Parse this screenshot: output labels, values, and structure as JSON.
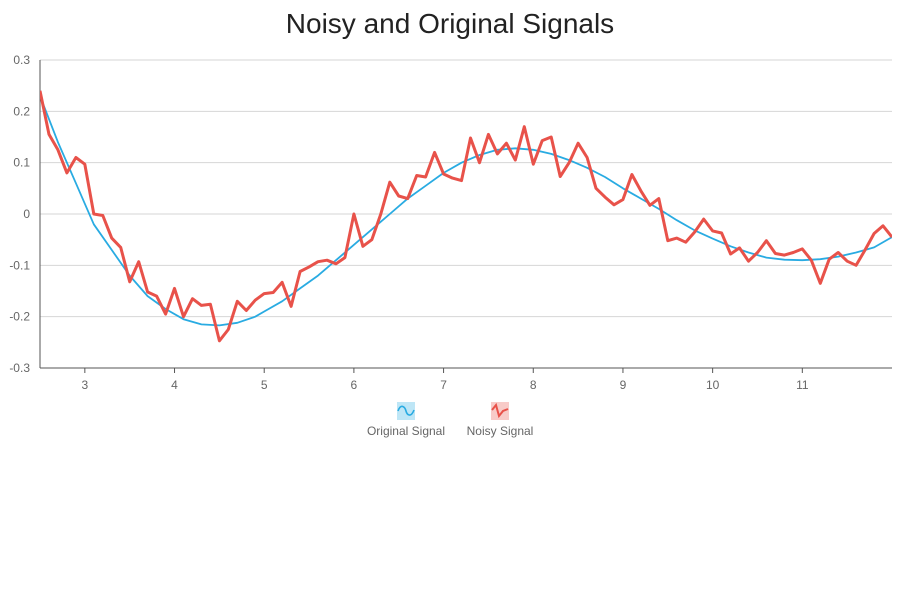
{
  "chart_data": {
    "type": "line",
    "title": "Noisy and Original Signals",
    "xlabel": "",
    "ylabel": "",
    "xlim": [
      2.5,
      12.0
    ],
    "ylim": [
      -0.3,
      0.3
    ],
    "x_ticks": [
      3,
      4,
      5,
      6,
      7,
      8,
      9,
      10,
      11
    ],
    "y_ticks": [
      -0.3,
      -0.2,
      -0.1,
      0,
      0.1,
      0.2,
      0.3
    ],
    "y_tick_labels": [
      "-0.3",
      "-0.2",
      "-0.1",
      "0",
      "0.1",
      "0.2",
      "0.3"
    ],
    "grid": {
      "horizontal": true,
      "vertical": false
    },
    "legend_position": "bottom-center",
    "series": [
      {
        "name": "Original Signal",
        "color": "#29abe2",
        "points": [
          [
            2.5,
            0.23
          ],
          [
            2.7,
            0.14
          ],
          [
            2.9,
            0.06
          ],
          [
            3.0,
            0.02
          ],
          [
            3.1,
            -0.02
          ],
          [
            3.3,
            -0.07
          ],
          [
            3.5,
            -0.12
          ],
          [
            3.7,
            -0.16
          ],
          [
            3.9,
            -0.185
          ],
          [
            4.1,
            -0.205
          ],
          [
            4.3,
            -0.215
          ],
          [
            4.5,
            -0.217
          ],
          [
            4.7,
            -0.212
          ],
          [
            4.9,
            -0.2
          ],
          [
            5.0,
            -0.19
          ],
          [
            5.2,
            -0.17
          ],
          [
            5.4,
            -0.145
          ],
          [
            5.6,
            -0.12
          ],
          [
            5.8,
            -0.09
          ],
          [
            6.0,
            -0.06
          ],
          [
            6.2,
            -0.03
          ],
          [
            6.4,
            0.0
          ],
          [
            6.6,
            0.03
          ],
          [
            6.8,
            0.055
          ],
          [
            7.0,
            0.08
          ],
          [
            7.2,
            0.1
          ],
          [
            7.4,
            0.115
          ],
          [
            7.6,
            0.125
          ],
          [
            7.8,
            0.128
          ],
          [
            8.0,
            0.125
          ],
          [
            8.2,
            0.117
          ],
          [
            8.4,
            0.105
          ],
          [
            8.6,
            0.09
          ],
          [
            8.8,
            0.072
          ],
          [
            9.0,
            0.05
          ],
          [
            9.2,
            0.03
          ],
          [
            9.4,
            0.01
          ],
          [
            9.6,
            -0.012
          ],
          [
            9.8,
            -0.032
          ],
          [
            10.0,
            -0.048
          ],
          [
            10.2,
            -0.063
          ],
          [
            10.4,
            -0.075
          ],
          [
            10.6,
            -0.085
          ],
          [
            10.8,
            -0.089
          ],
          [
            11.0,
            -0.09
          ],
          [
            11.2,
            -0.088
          ],
          [
            11.4,
            -0.083
          ],
          [
            11.6,
            -0.075
          ],
          [
            11.8,
            -0.065
          ],
          [
            12.0,
            -0.045
          ]
        ]
      },
      {
        "name": "Noisy Signal",
        "color": "#e8524a",
        "points": [
          [
            2.5,
            0.24
          ],
          [
            2.6,
            0.155
          ],
          [
            2.7,
            0.125
          ],
          [
            2.8,
            0.08
          ],
          [
            2.9,
            0.11
          ],
          [
            3.0,
            0.097
          ],
          [
            3.1,
            0.0
          ],
          [
            3.2,
            -0.003
          ],
          [
            3.3,
            -0.047
          ],
          [
            3.4,
            -0.065
          ],
          [
            3.5,
            -0.132
          ],
          [
            3.6,
            -0.093
          ],
          [
            3.7,
            -0.152
          ],
          [
            3.8,
            -0.16
          ],
          [
            3.9,
            -0.195
          ],
          [
            4.0,
            -0.145
          ],
          [
            4.1,
            -0.2
          ],
          [
            4.2,
            -0.165
          ],
          [
            4.3,
            -0.178
          ],
          [
            4.4,
            -0.176
          ],
          [
            4.5,
            -0.247
          ],
          [
            4.6,
            -0.225
          ],
          [
            4.7,
            -0.17
          ],
          [
            4.8,
            -0.188
          ],
          [
            4.9,
            -0.168
          ],
          [
            5.0,
            -0.155
          ],
          [
            5.1,
            -0.153
          ],
          [
            5.2,
            -0.133
          ],
          [
            5.3,
            -0.18
          ],
          [
            5.4,
            -0.112
          ],
          [
            5.5,
            -0.103
          ],
          [
            5.6,
            -0.093
          ],
          [
            5.7,
            -0.09
          ],
          [
            5.8,
            -0.097
          ],
          [
            5.9,
            -0.085
          ],
          [
            6.0,
            0.0
          ],
          [
            6.1,
            -0.063
          ],
          [
            6.2,
            -0.05
          ],
          [
            6.3,
            0.0
          ],
          [
            6.4,
            0.062
          ],
          [
            6.5,
            0.035
          ],
          [
            6.6,
            0.03
          ],
          [
            6.7,
            0.075
          ],
          [
            6.8,
            0.072
          ],
          [
            6.9,
            0.12
          ],
          [
            7.0,
            0.078
          ],
          [
            7.1,
            0.07
          ],
          [
            7.2,
            0.065
          ],
          [
            7.3,
            0.148
          ],
          [
            7.4,
            0.1
          ],
          [
            7.5,
            0.155
          ],
          [
            7.6,
            0.117
          ],
          [
            7.7,
            0.138
          ],
          [
            7.8,
            0.105
          ],
          [
            7.9,
            0.17
          ],
          [
            8.0,
            0.097
          ],
          [
            8.1,
            0.143
          ],
          [
            8.2,
            0.15
          ],
          [
            8.3,
            0.073
          ],
          [
            8.4,
            0.1
          ],
          [
            8.5,
            0.138
          ],
          [
            8.6,
            0.11
          ],
          [
            8.7,
            0.05
          ],
          [
            8.8,
            0.033
          ],
          [
            8.9,
            0.018
          ],
          [
            9.0,
            0.028
          ],
          [
            9.1,
            0.077
          ],
          [
            9.2,
            0.045
          ],
          [
            9.3,
            0.017
          ],
          [
            9.4,
            0.03
          ],
          [
            9.5,
            -0.052
          ],
          [
            9.6,
            -0.047
          ],
          [
            9.7,
            -0.055
          ],
          [
            9.8,
            -0.035
          ],
          [
            9.9,
            -0.01
          ],
          [
            10.0,
            -0.033
          ],
          [
            10.1,
            -0.037
          ],
          [
            10.2,
            -0.078
          ],
          [
            10.3,
            -0.066
          ],
          [
            10.4,
            -0.092
          ],
          [
            10.5,
            -0.075
          ],
          [
            10.6,
            -0.052
          ],
          [
            10.7,
            -0.077
          ],
          [
            10.8,
            -0.08
          ],
          [
            10.9,
            -0.075
          ],
          [
            11.0,
            -0.068
          ],
          [
            11.1,
            -0.09
          ],
          [
            11.2,
            -0.135
          ],
          [
            11.3,
            -0.088
          ],
          [
            11.4,
            -0.075
          ],
          [
            11.5,
            -0.092
          ],
          [
            11.6,
            -0.1
          ],
          [
            11.7,
            -0.07
          ],
          [
            11.8,
            -0.038
          ],
          [
            11.9,
            -0.023
          ],
          [
            12.0,
            -0.045
          ]
        ]
      }
    ]
  }
}
